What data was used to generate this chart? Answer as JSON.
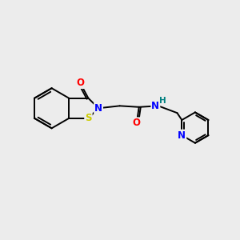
{
  "background_color": "#ececec",
  "bond_color": "#000000",
  "atom_colors": {
    "O": "#ff0000",
    "N": "#0000ff",
    "S": "#cccc00",
    "H": "#008080",
    "C": "#000000"
  },
  "font_size_atoms": 8.5,
  "line_width": 1.4
}
